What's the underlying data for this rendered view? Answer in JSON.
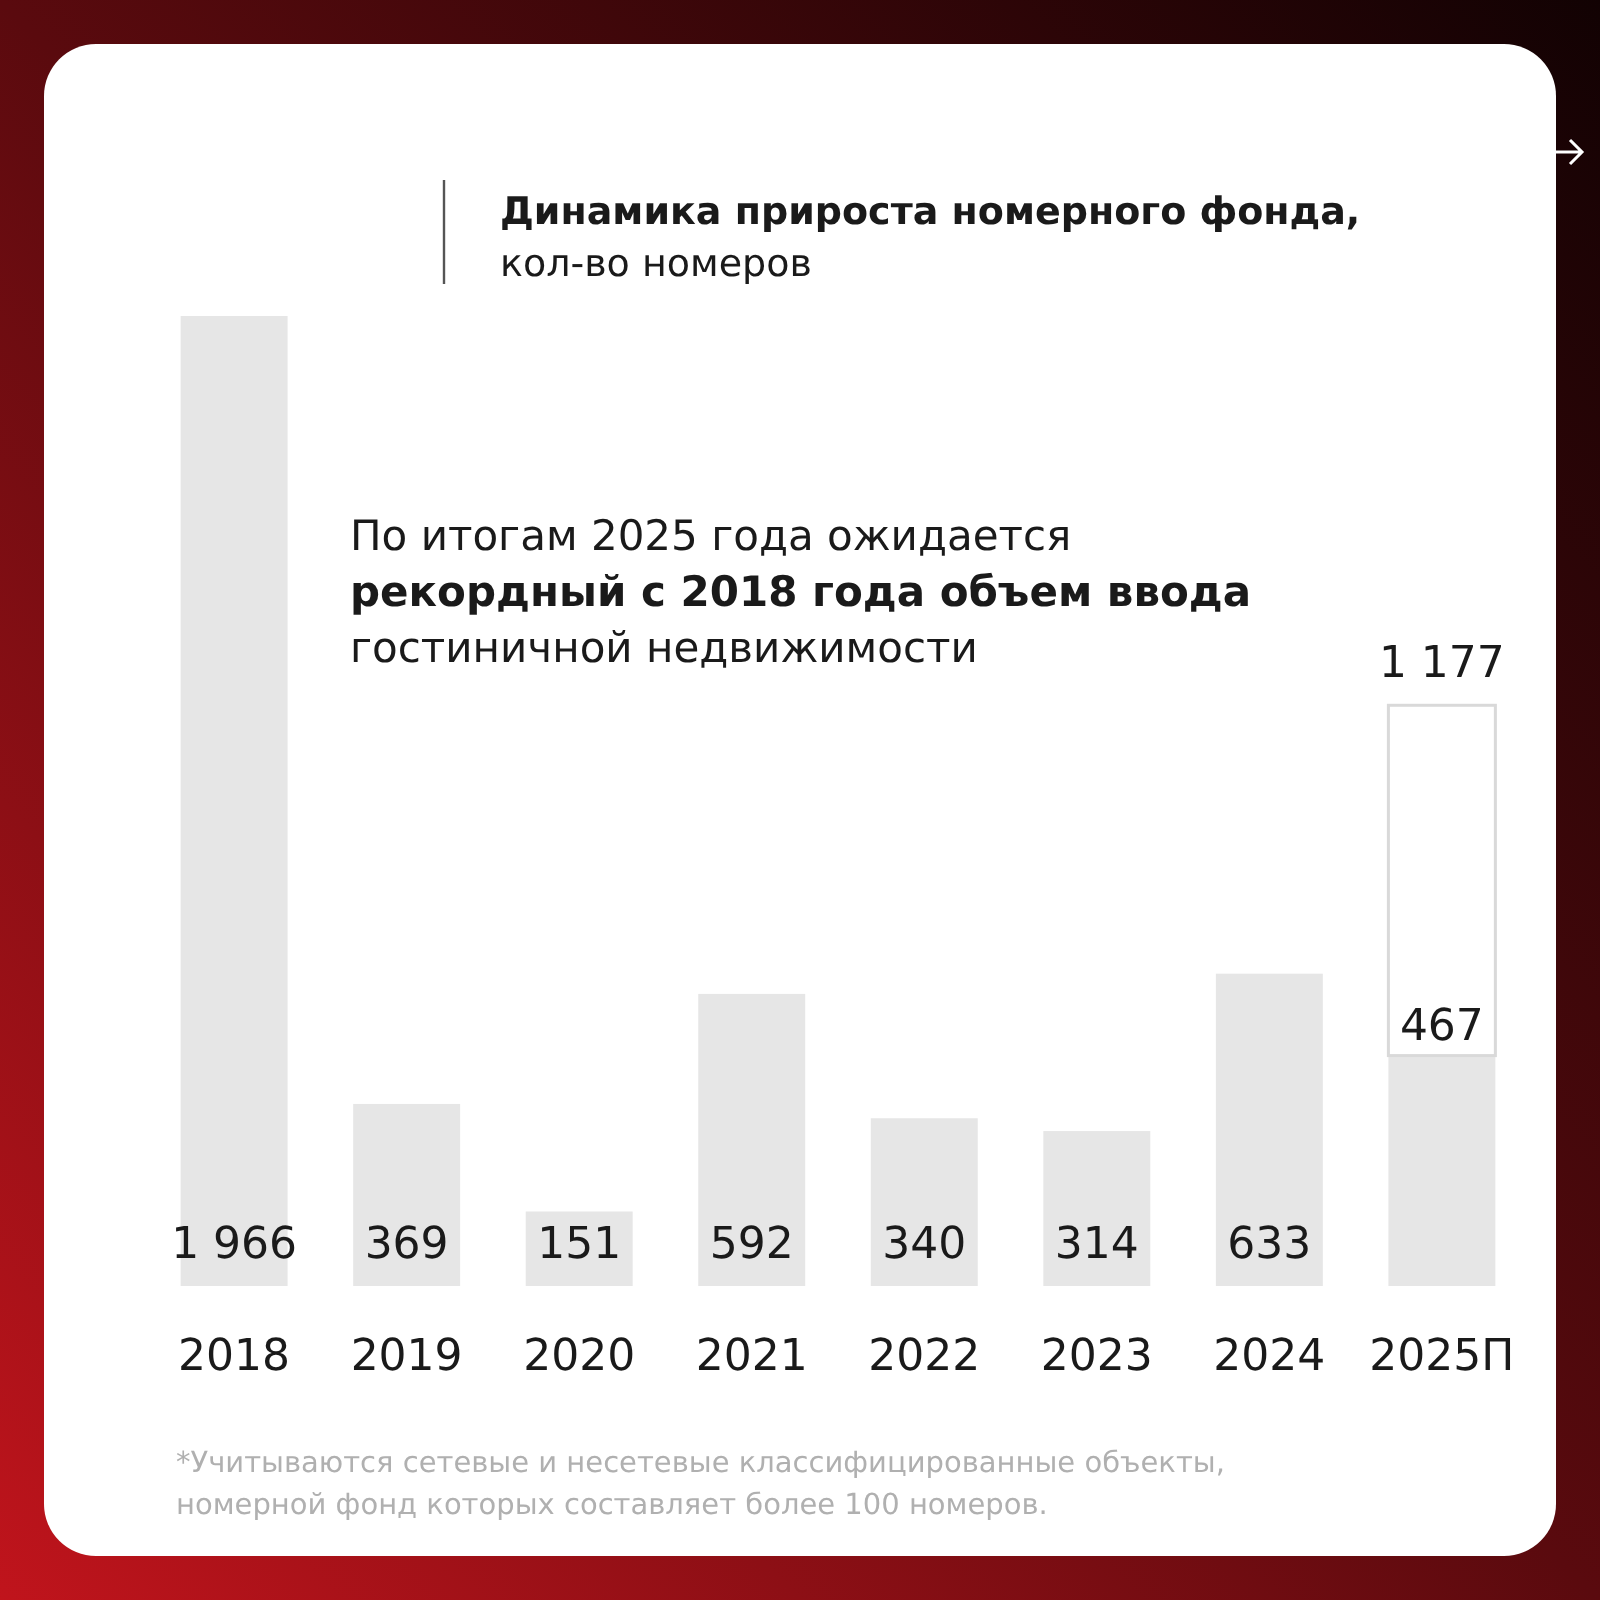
{
  "chart_data": {
    "type": "bar",
    "title": "Динамика прироста номерного фонда,",
    "subtitle": "кол-во номеров",
    "categories": [
      "2018",
      "2019",
      "2020",
      "2021",
      "2022",
      "2023",
      "2024",
      "2025П"
    ],
    "stacked": true,
    "series": [
      {
        "color": "#e6e6e6",
        "values": [
          1966,
          369,
          151,
          592,
          340,
          314,
          633,
          467
        ],
        "value_labels": [
          "1 966",
          "369",
          "151",
          "592",
          "340",
          "314",
          "633",
          "467"
        ]
      },
      {
        "color": "#ffffff",
        "values": [
          null,
          null,
          null,
          null,
          null,
          null,
          null,
          710
        ]
      }
    ],
    "totals": [
      null,
      null,
      null,
      null,
      null,
      null,
      null,
      "1 177"
    ],
    "annotations": [
      "По итогам 2025 года ожидается",
      "рекордный с 2018 года объем ввода",
      "гостиничной недвижимости",
      "*Учитываются сетевые и несетевые классифицированные объекты, номерной фонд которых составляет более 100 номеров."
    ]
  }
}
